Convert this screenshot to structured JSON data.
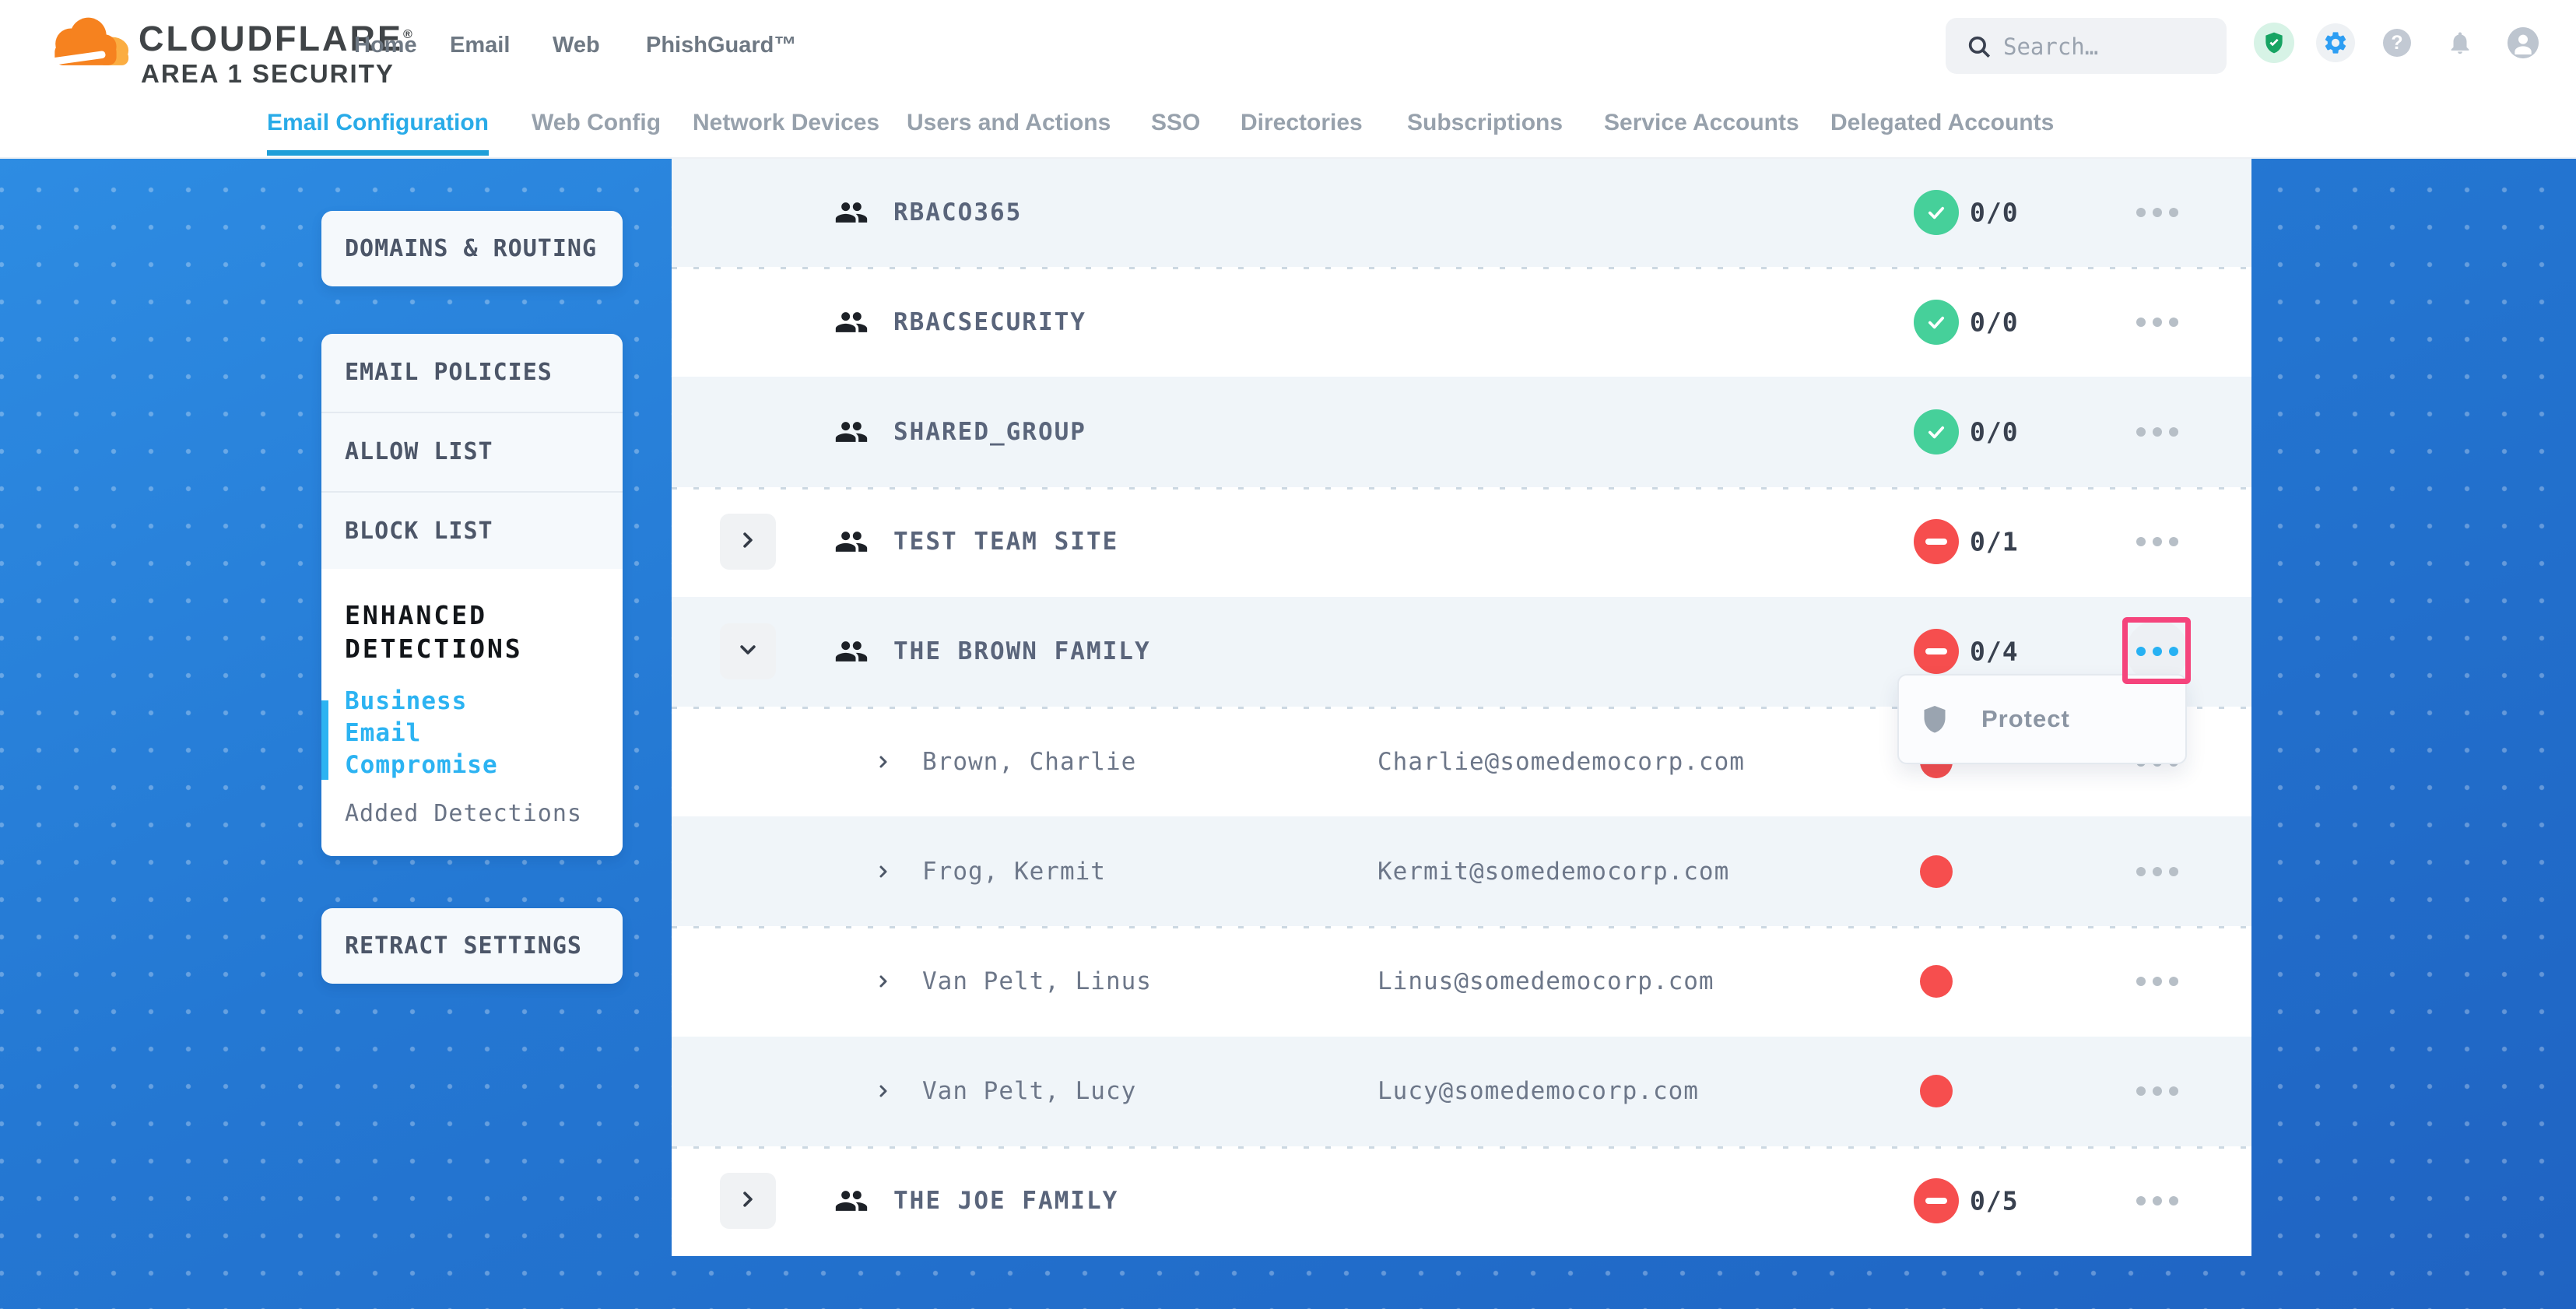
{
  "header": {
    "brand": "CLOUDFLARE",
    "brand_mark": "®",
    "brand_sub": "AREA 1 SECURITY",
    "nav": [
      {
        "label": "Home"
      },
      {
        "label": "Email"
      },
      {
        "label": "Web"
      },
      {
        "label": "PhishGuard™"
      }
    ],
    "search_placeholder": "Search…",
    "help_glyph": "?"
  },
  "tabs": [
    {
      "label": "Email Configuration",
      "active": true
    },
    {
      "label": "Web Config",
      "active": false
    },
    {
      "label": "Network Devices",
      "active": false
    },
    {
      "label": "Users and Actions",
      "active": false
    },
    {
      "label": "SSO",
      "active": false
    },
    {
      "label": "Directories",
      "active": false
    },
    {
      "label": "Subscriptions",
      "active": false
    },
    {
      "label": "Service Accounts",
      "active": false
    },
    {
      "label": "Delegated Accounts",
      "active": false
    }
  ],
  "sidebar": {
    "domains_routing": "DOMAINS & ROUTING",
    "policies": [
      {
        "label": "EMAIL POLICIES"
      },
      {
        "label": "ALLOW LIST"
      },
      {
        "label": "BLOCK LIST"
      }
    ],
    "enhanced": {
      "title": "ENHANCED DETECTIONS",
      "active_item": "Business Email Compromise",
      "inactive_item": "Added Detections"
    },
    "retract": "RETRACT SETTINGS"
  },
  "table": {
    "rows": [
      {
        "type": "group",
        "name": "RBACO365",
        "status": "ok",
        "count": "0/0"
      },
      {
        "type": "group",
        "name": "RBACSECURITY",
        "status": "ok",
        "count": "0/0"
      },
      {
        "type": "group",
        "name": "SHARED_GROUP",
        "status": "ok",
        "count": "0/0"
      },
      {
        "type": "group",
        "name": "TEST TEAM SITE",
        "status": "alert",
        "count": "0/1",
        "chevron": "right"
      },
      {
        "type": "group",
        "name": "THE BROWN FAMILY",
        "status": "alert",
        "count": "0/4",
        "chevron": "down",
        "dots_active": true,
        "highlighted": true
      },
      {
        "type": "member",
        "name": "Brown, Charlie",
        "email": "Charlie@somedemocorp.com"
      },
      {
        "type": "member",
        "name": "Frog, Kermit",
        "email": "Kermit@somedemocorp.com"
      },
      {
        "type": "member",
        "name": "Van Pelt, Linus",
        "email": "Linus@somedemocorp.com"
      },
      {
        "type": "member",
        "name": "Van Pelt, Lucy",
        "email": "Lucy@somedemocorp.com"
      },
      {
        "type": "group",
        "name": "THE JOE FAMILY",
        "status": "alert",
        "count": "0/5",
        "chevron": "right"
      }
    ]
  },
  "context_menu": {
    "items": [
      {
        "label": "Protect",
        "icon": "shield"
      }
    ]
  },
  "colors": {
    "accent_cyan": "#2cb0ef",
    "tab_underline": "#1f9fd9",
    "ok_green": "#46d09a",
    "alert_red": "#f64e4e",
    "highlight_pink": "#f5447c",
    "brand_orange": "#f6821f",
    "brand_orange_light": "#fbad41",
    "row_alt_blue": "#f0f5f9"
  }
}
